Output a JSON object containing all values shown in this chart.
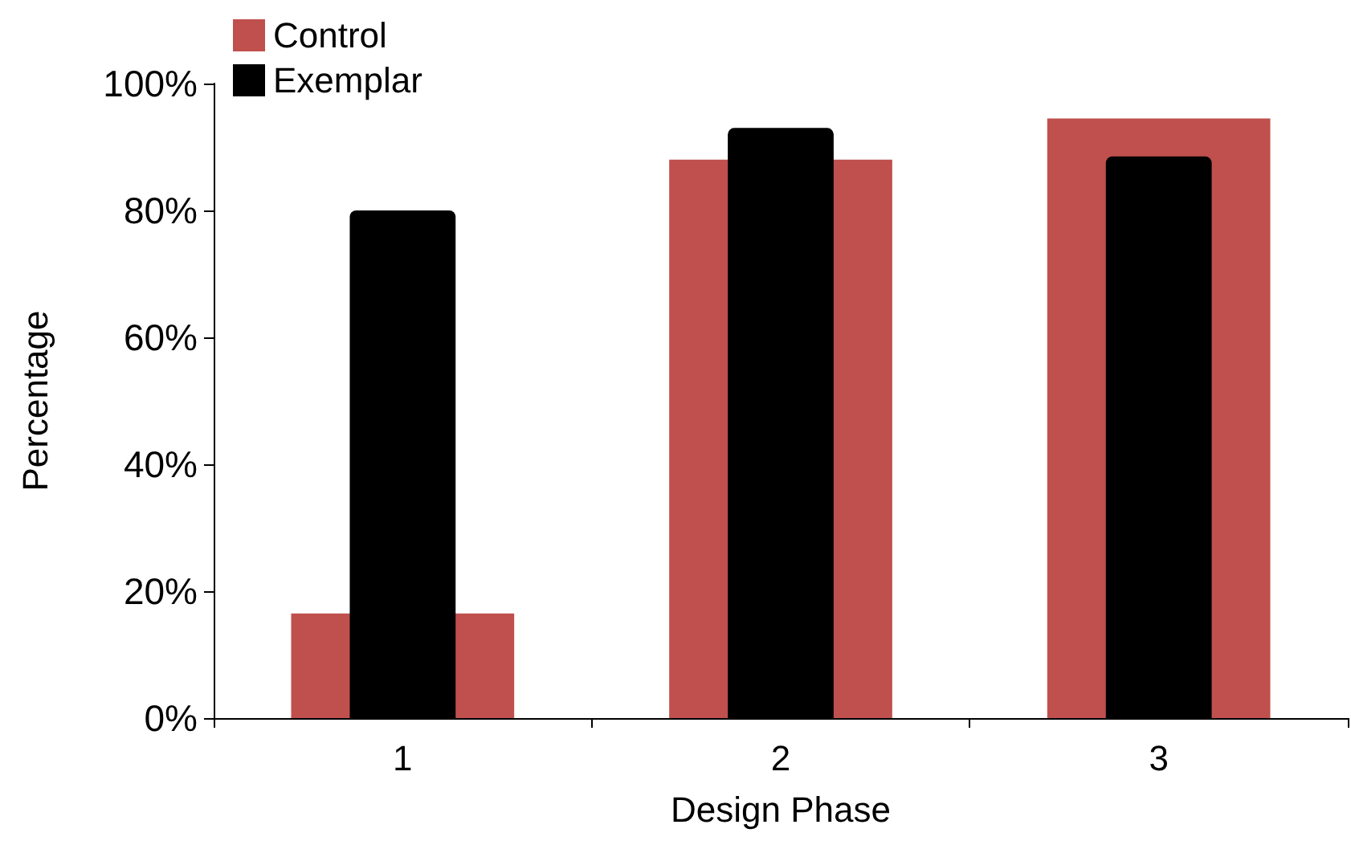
{
  "chart_data": {
    "type": "bar",
    "xlabel": "Design Phase",
    "ylabel": "Percentage",
    "categories": [
      "1",
      "2",
      "3"
    ],
    "series": [
      {
        "name": "Control",
        "color": "#c0504d",
        "values": [
          16.5,
          88,
          94.5
        ]
      },
      {
        "name": "Exemplar",
        "color": "#000000",
        "values": [
          80,
          93,
          88.5
        ]
      }
    ],
    "ylim": [
      0,
      100
    ],
    "yticks": [
      {
        "value": 0,
        "label": "0%"
      },
      {
        "value": 20,
        "label": "20%"
      },
      {
        "value": 40,
        "label": "40%"
      },
      {
        "value": 60,
        "label": "60%"
      },
      {
        "value": 80,
        "label": "80%"
      },
      {
        "value": 100,
        "label": "100%"
      }
    ],
    "grid": false,
    "legend": "top left"
  }
}
